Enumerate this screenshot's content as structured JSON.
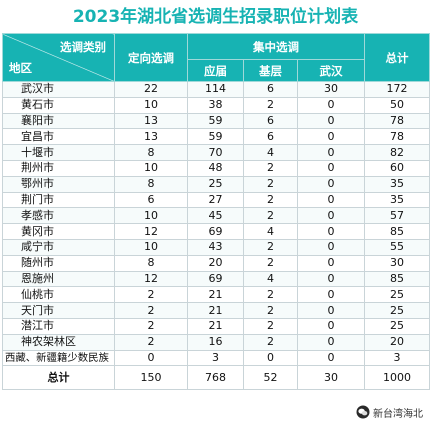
{
  "title": "2023年湖北省选调生招录职位计划表",
  "header": {
    "category_label": "选调类别",
    "region_label": "地区",
    "targeted": "定向选调",
    "concentrated": "集中选调",
    "fresh_grad": "应届",
    "grassroots": "基层",
    "wuhan": "武汉",
    "total": "总计"
  },
  "rows": [
    {
      "region": "武汉市",
      "targeted": "22",
      "fresh": "114",
      "grass": "6",
      "wuhan": "30",
      "total": "172"
    },
    {
      "region": "黄石市",
      "targeted": "10",
      "fresh": "38",
      "grass": "2",
      "wuhan": "0",
      "total": "50"
    },
    {
      "region": "襄阳市",
      "targeted": "13",
      "fresh": "59",
      "grass": "6",
      "wuhan": "0",
      "total": "78"
    },
    {
      "region": "宜昌市",
      "targeted": "13",
      "fresh": "59",
      "grass": "6",
      "wuhan": "0",
      "total": "78"
    },
    {
      "region": "十堰市",
      "targeted": "8",
      "fresh": "70",
      "grass": "4",
      "wuhan": "0",
      "total": "82"
    },
    {
      "region": "荆州市",
      "targeted": "10",
      "fresh": "48",
      "grass": "2",
      "wuhan": "0",
      "total": "60"
    },
    {
      "region": "鄂州市",
      "targeted": "8",
      "fresh": "25",
      "grass": "2",
      "wuhan": "0",
      "total": "35"
    },
    {
      "region": "荆门市",
      "targeted": "6",
      "fresh": "27",
      "grass": "2",
      "wuhan": "0",
      "total": "35"
    },
    {
      "region": "孝感市",
      "targeted": "10",
      "fresh": "45",
      "grass": "2",
      "wuhan": "0",
      "total": "57"
    },
    {
      "region": "黄冈市",
      "targeted": "12",
      "fresh": "69",
      "grass": "4",
      "wuhan": "0",
      "total": "85"
    },
    {
      "region": "咸宁市",
      "targeted": "10",
      "fresh": "43",
      "grass": "2",
      "wuhan": "0",
      "total": "55"
    },
    {
      "region": "随州市",
      "targeted": "8",
      "fresh": "20",
      "grass": "2",
      "wuhan": "0",
      "total": "30"
    },
    {
      "region": "恩施州",
      "targeted": "12",
      "fresh": "69",
      "grass": "4",
      "wuhan": "0",
      "total": "85"
    },
    {
      "region": "仙桃市",
      "targeted": "2",
      "fresh": "21",
      "grass": "2",
      "wuhan": "0",
      "total": "25"
    },
    {
      "region": "天门市",
      "targeted": "2",
      "fresh": "21",
      "grass": "2",
      "wuhan": "0",
      "total": "25"
    },
    {
      "region": "潜江市",
      "targeted": "2",
      "fresh": "21",
      "grass": "2",
      "wuhan": "0",
      "total": "25"
    },
    {
      "region": "神农架林区",
      "targeted": "2",
      "fresh": "16",
      "grass": "2",
      "wuhan": "0",
      "total": "20"
    },
    {
      "region": "西藏、新疆籍少数民族",
      "targeted": "0",
      "fresh": "3",
      "grass": "0",
      "wuhan": "0",
      "total": "3"
    }
  ],
  "total_row": {
    "region": "总计",
    "targeted": "150",
    "fresh": "768",
    "grass": "52",
    "wuhan": "30",
    "total": "1000"
  },
  "watermark": {
    "text": "新台湾海北",
    "icon": "wechat-logo-icon"
  }
}
